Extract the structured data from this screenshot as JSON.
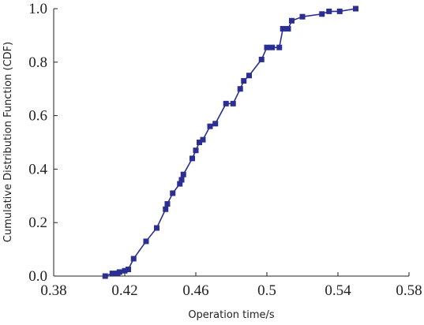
{
  "chart_data": {
    "type": "line",
    "x_label": "Operation time/s",
    "y_label": "Cumulative Distribution Function  (CDF)",
    "x": [
      0.409,
      0.413,
      0.416,
      0.417,
      0.42,
      0.422,
      0.425,
      0.432,
      0.438,
      0.443,
      0.444,
      0.447,
      0.451,
      0.452,
      0.453,
      0.458,
      0.46,
      0.462,
      0.464,
      0.468,
      0.471,
      0.477,
      0.481,
      0.485,
      0.487,
      0.49,
      0.497,
      0.5,
      0.503,
      0.507,
      0.509,
      0.512,
      0.514,
      0.52,
      0.531,
      0.535,
      0.541,
      0.55
    ],
    "values": [
      0.0,
      0.01,
      0.01,
      0.015,
      0.02,
      0.025,
      0.065,
      0.13,
      0.18,
      0.25,
      0.27,
      0.31,
      0.345,
      0.36,
      0.38,
      0.44,
      0.47,
      0.5,
      0.51,
      0.56,
      0.57,
      0.645,
      0.645,
      0.7,
      0.73,
      0.75,
      0.81,
      0.855,
      0.855,
      0.855,
      0.925,
      0.925,
      0.955,
      0.97,
      0.98,
      0.99,
      0.99,
      1.0
    ],
    "color": "#2b2f91",
    "xlim": [
      0.38,
      0.58
    ],
    "xticks": [
      0.38,
      0.42,
      0.46,
      0.5,
      0.54,
      0.58
    ],
    "ylim": [
      0,
      1
    ],
    "yticks": [
      {
        "value": 0,
        "label": "0.0"
      },
      0.2,
      0.4,
      0.6,
      0.8,
      {
        "value": 1,
        "label": "1.0"
      }
    ],
    "grid": false
  }
}
